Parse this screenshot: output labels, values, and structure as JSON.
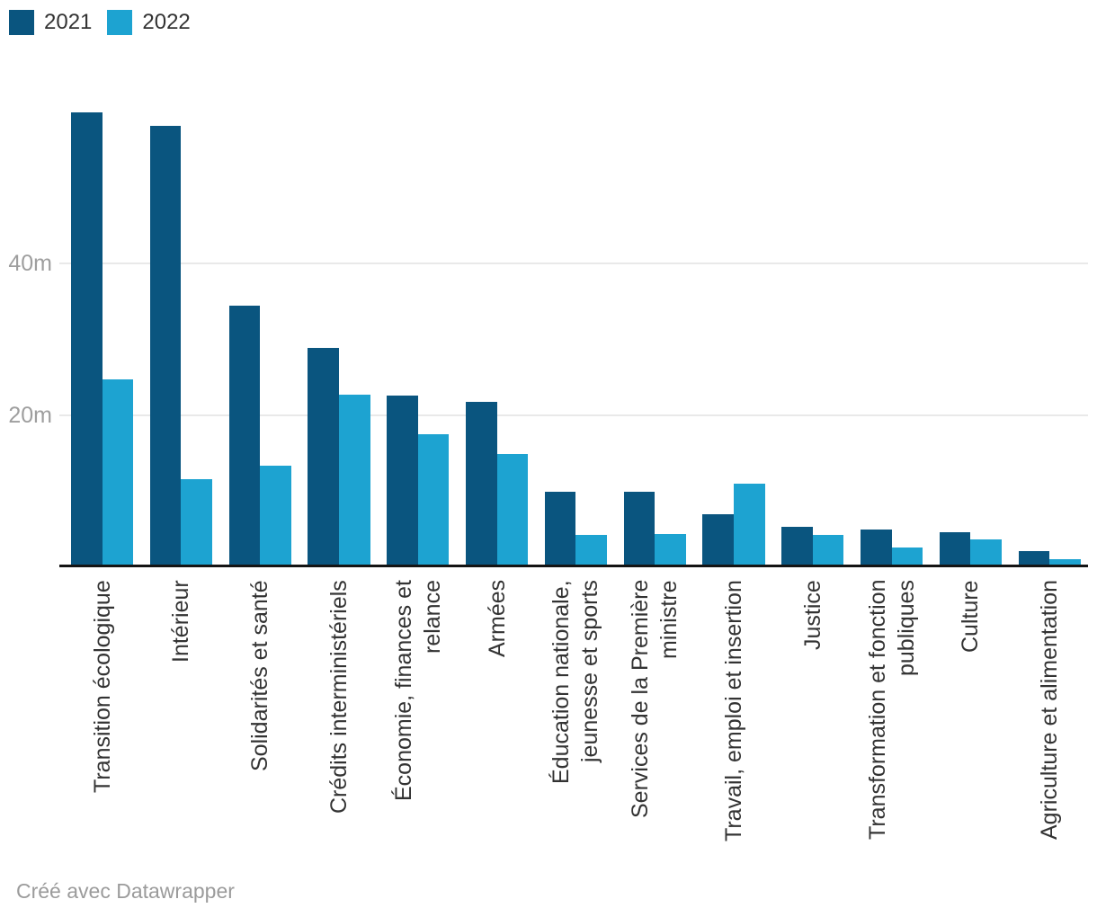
{
  "legend": {
    "items": [
      {
        "label": "2021",
        "color": "#0a557f"
      },
      {
        "label": "2022",
        "color": "#1da3d1"
      }
    ]
  },
  "footer": {
    "credit": "Créé avec Datawrapper"
  },
  "chart_data": {
    "type": "bar",
    "title": "",
    "xlabel": "",
    "ylabel": "",
    "categories": [
      "Transition écologique",
      "Intérieur",
      "Solidarités et santé",
      "Crédits interministériels",
      "Économie, finances et\nrelance",
      "Armées",
      "Éducation nationale,\njeunesse et sports",
      "Services de la Première\nministre",
      "Travail, emploi et insertion",
      "Justice",
      "Transformation et fonction\npubliques",
      "Culture",
      "Agriculture et alimentation"
    ],
    "series": [
      {
        "name": "2021",
        "color": "#0a557f",
        "values": [
          60.0,
          58.2,
          34.4,
          28.8,
          22.5,
          21.7,
          9.8,
          9.9,
          6.9,
          5.2,
          4.9,
          4.5,
          2.0
        ]
      },
      {
        "name": "2022",
        "color": "#1da3d1",
        "values": [
          24.7,
          11.5,
          13.3,
          22.7,
          17.4,
          14.8,
          4.1,
          4.3,
          10.9,
          4.2,
          2.5,
          3.6,
          0.9
        ]
      }
    ],
    "y_ticks": [
      {
        "value": 20,
        "label": "20m"
      },
      {
        "value": 40,
        "label": "40m"
      }
    ],
    "ylim": [
      0,
      63
    ],
    "grid": true,
    "legend_position": "top-left"
  }
}
